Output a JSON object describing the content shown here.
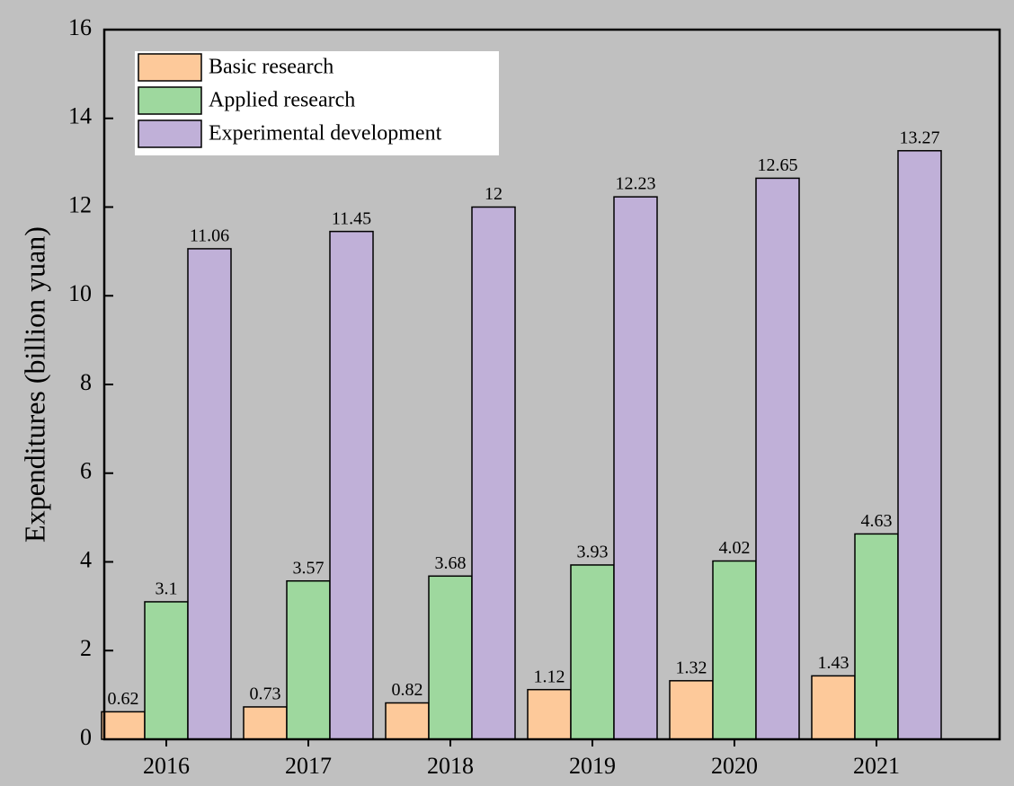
{
  "chart_data": {
    "type": "bar",
    "y_label": "Expenditures (billion yuan)",
    "categories": [
      "2016",
      "2017",
      "2018",
      "2019",
      "2020",
      "2021"
    ],
    "series": [
      {
        "name": "Basic research",
        "color": "#fdc99a",
        "values": [
          0.62,
          0.73,
          0.82,
          1.12,
          1.32,
          1.43
        ]
      },
      {
        "name": "Applied research",
        "color": "#9ed89e",
        "values": [
          3.1,
          3.57,
          3.68,
          3.93,
          4.02,
          4.63
        ]
      },
      {
        "name": "Experimental development",
        "color": "#c0b0d8",
        "values": [
          11.06,
          11.45,
          12,
          12.23,
          12.65,
          13.27
        ]
      }
    ],
    "ylim": [
      0,
      16
    ],
    "yticks": [
      0,
      2,
      4,
      6,
      8,
      10,
      12,
      14,
      16
    ],
    "legend": "upper left"
  }
}
